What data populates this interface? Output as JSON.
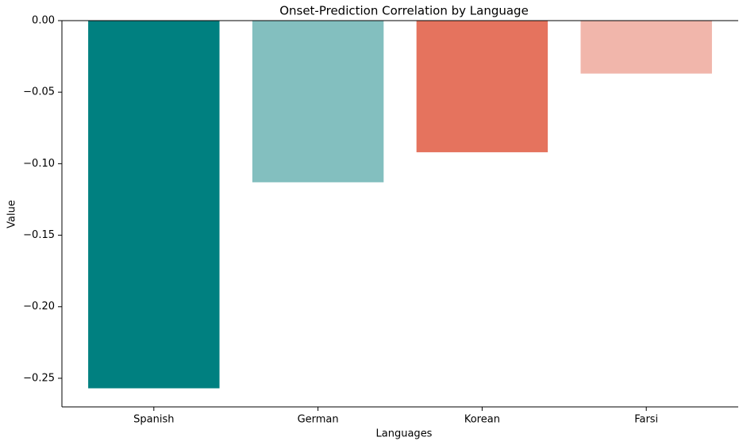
{
  "chart_data": {
    "type": "bar",
    "title": "Onset-Prediction Correlation by Language",
    "xlabel": "Languages",
    "ylabel": "Value",
    "categories": [
      "Spanish",
      "German",
      "Korean",
      "Farsi"
    ],
    "values": [
      -0.257,
      -0.113,
      -0.092,
      -0.037
    ],
    "colors": [
      "#008080",
      "#83bfbf",
      "#e5735e",
      "#f1b6ab"
    ],
    "ylim": [
      -0.27,
      0
    ],
    "yticks": [
      {
        "value": 0,
        "label": "0.00"
      },
      {
        "value": -0.05,
        "label": "−0.05"
      },
      {
        "value": -0.1,
        "label": "−0.10"
      },
      {
        "value": -0.15,
        "label": "−0.15"
      },
      {
        "value": -0.2,
        "label": "−0.20"
      },
      {
        "value": -0.25,
        "label": "−0.25"
      }
    ],
    "grid": false
  }
}
